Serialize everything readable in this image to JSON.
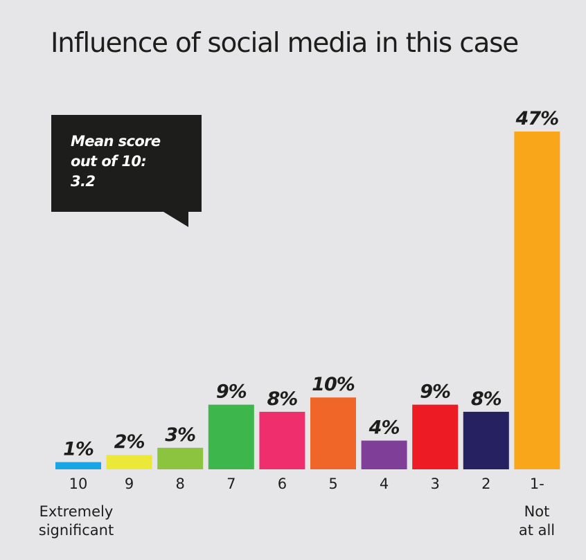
{
  "chart_data": {
    "type": "bar",
    "title": "Influence of social media in this case",
    "callout": {
      "line1": "Mean score",
      "line2": "out of 10:",
      "line3": "3.2"
    },
    "categories": [
      "10",
      "9",
      "8",
      "7",
      "6",
      "5",
      "4",
      "3",
      "2",
      "1-"
    ],
    "values": [
      1,
      2,
      3,
      9,
      8,
      10,
      4,
      9,
      8,
      47
    ],
    "value_labels": [
      "1%",
      "2%",
      "3%",
      "9%",
      "8%",
      "10%",
      "4%",
      "9%",
      "8%",
      "47%"
    ],
    "colors": [
      "#16a6e6",
      "#ebe83a",
      "#8dc43f",
      "#3db64b",
      "#ee2e6d",
      "#ef6628",
      "#7f3f98",
      "#ed1c24",
      "#262262",
      "#f9a61a"
    ],
    "scale_end_labels": {
      "left": {
        "line1": "Extremely",
        "line2": "significant"
      },
      "right": {
        "line1": "Not",
        "line2": "at all"
      }
    },
    "xlabel": "",
    "ylabel": "",
    "ylim": [
      0,
      47
    ],
    "grid": false,
    "legend": "none"
  }
}
